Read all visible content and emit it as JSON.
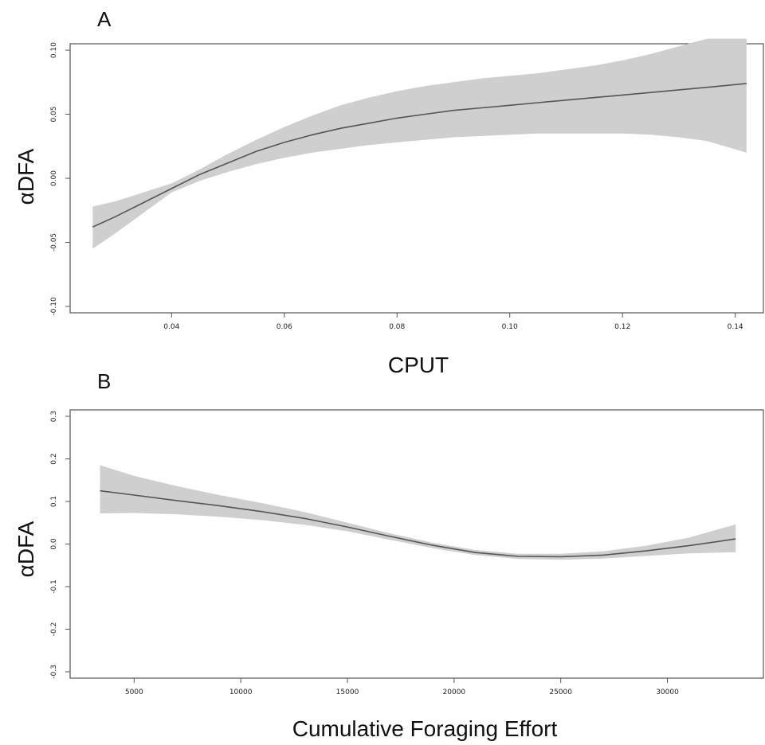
{
  "chart_data": [
    {
      "type": "line",
      "panel_label": "A",
      "xlabel": "CPUT",
      "ylabel": "αDFA",
      "xlim": [
        0.022,
        0.145
      ],
      "ylim": [
        -0.105,
        0.105
      ],
      "x_ticks": [
        {
          "value": 0.04,
          "label": "0.04"
        },
        {
          "value": 0.06,
          "label": "0.06"
        },
        {
          "value": 0.08,
          "label": "0.08"
        },
        {
          "value": 0.1,
          "label": "0.10"
        },
        {
          "value": 0.12,
          "label": "0.12"
        },
        {
          "value": 0.14,
          "label": "0.14"
        }
      ],
      "y_ticks": [
        {
          "value": -0.1,
          "label": "-0.10"
        },
        {
          "value": -0.05,
          "label": "-0.05"
        },
        {
          "value": 0.0,
          "label": "0.00"
        },
        {
          "value": 0.05,
          "label": "0.05"
        },
        {
          "value": 0.1,
          "label": "0.10"
        }
      ],
      "series": [
        {
          "x": [
            0.026,
            0.03,
            0.035,
            0.04,
            0.045,
            0.05,
            0.055,
            0.06,
            0.065,
            0.07,
            0.075,
            0.08,
            0.085,
            0.09,
            0.095,
            0.1,
            0.105,
            0.11,
            0.115,
            0.12,
            0.125,
            0.13,
            0.135,
            0.142
          ],
          "y": [
            -0.038,
            -0.03,
            -0.019,
            -0.008,
            0.003,
            0.012,
            0.021,
            0.028,
            0.034,
            0.039,
            0.043,
            0.047,
            0.05,
            0.053,
            0.055,
            0.057,
            0.059,
            0.061,
            0.063,
            0.065,
            0.067,
            0.069,
            0.071,
            0.074
          ],
          "lower": [
            -0.055,
            -0.043,
            -0.027,
            -0.011,
            -0.002,
            0.005,
            0.011,
            0.016,
            0.02,
            0.023,
            0.026,
            0.028,
            0.03,
            0.032,
            0.033,
            0.034,
            0.035,
            0.035,
            0.035,
            0.035,
            0.034,
            0.032,
            0.029,
            0.02
          ],
          "upper": [
            -0.022,
            -0.018,
            -0.011,
            -0.004,
            0.007,
            0.019,
            0.03,
            0.04,
            0.049,
            0.057,
            0.063,
            0.068,
            0.072,
            0.075,
            0.078,
            0.08,
            0.082,
            0.085,
            0.088,
            0.092,
            0.097,
            0.103,
            0.109,
            0.109
          ]
        }
      ]
    },
    {
      "type": "line",
      "panel_label": "B",
      "xlabel": "Cumulative Foraging Effort",
      "ylabel": "αDFA",
      "xlim": [
        2000,
        34500
      ],
      "ylim": [
        -0.315,
        0.315
      ],
      "x_ticks": [
        {
          "value": 5000,
          "label": "5000"
        },
        {
          "value": 10000,
          "label": "10000"
        },
        {
          "value": 15000,
          "label": "15000"
        },
        {
          "value": 20000,
          "label": "20000"
        },
        {
          "value": 25000,
          "label": "25000"
        },
        {
          "value": 30000,
          "label": "30000"
        }
      ],
      "y_ticks": [
        {
          "value": -0.3,
          "label": "-0.3"
        },
        {
          "value": -0.2,
          "label": "-0.2"
        },
        {
          "value": -0.1,
          "label": "-0.1"
        },
        {
          "value": 0.0,
          "label": "0.0"
        },
        {
          "value": 0.1,
          "label": "0.1"
        },
        {
          "value": 0.2,
          "label": "0.2"
        },
        {
          "value": 0.3,
          "label": "0.3"
        }
      ],
      "series": [
        {
          "x": [
            3400,
            5000,
            7000,
            9000,
            11000,
            13000,
            15000,
            17000,
            19000,
            21000,
            23000,
            25000,
            27000,
            29000,
            31000,
            33200
          ],
          "y": [
            0.125,
            0.115,
            0.102,
            0.09,
            0.076,
            0.06,
            0.04,
            0.018,
            -0.003,
            -0.02,
            -0.029,
            -0.03,
            -0.026,
            -0.016,
            -0.004,
            0.012
          ],
          "lower": [
            0.072,
            0.073,
            0.07,
            0.064,
            0.056,
            0.045,
            0.03,
            0.01,
            -0.01,
            -0.026,
            -0.035,
            -0.037,
            -0.034,
            -0.028,
            -0.022,
            -0.019
          ],
          "upper": [
            0.185,
            0.16,
            0.136,
            0.115,
            0.096,
            0.075,
            0.05,
            0.025,
            0.003,
            -0.014,
            -0.023,
            -0.023,
            -0.017,
            -0.004,
            0.015,
            0.046
          ]
        }
      ]
    }
  ]
}
